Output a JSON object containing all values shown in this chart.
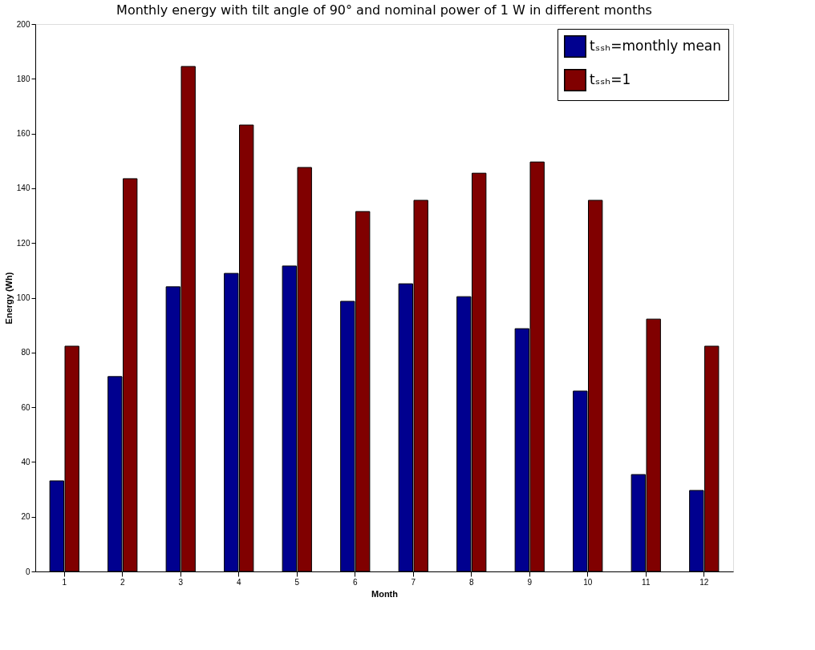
{
  "chart_data": {
    "type": "bar",
    "title": "Monthly energy with tilt angle of 90° and nominal power of 1 W in different months",
    "xlabel": "Month",
    "ylabel": "Energy (Wh)",
    "categories": [
      "1",
      "2",
      "3",
      "4",
      "5",
      "6",
      "7",
      "8",
      "9",
      "10",
      "11",
      "12"
    ],
    "series": [
      {
        "name": "tₛₛₕ=monthly mean",
        "color": "#00008f",
        "values": [
          33.1,
          71.2,
          104,
          108.9,
          111.6,
          98.7,
          105.1,
          100.4,
          88.7,
          65.9,
          35.4,
          29.6
        ]
      },
      {
        "name": "tₛₛₕ=1",
        "color": "#800000",
        "values": [
          82.3,
          143.5,
          184.5,
          163.1,
          147.6,
          131.5,
          135.6,
          145.5,
          149.6,
          135.6,
          92.2,
          82.3
        ]
      }
    ],
    "ylim": [
      0,
      200
    ],
    "yticks": [
      0,
      20,
      40,
      60,
      80,
      100,
      120,
      140,
      160,
      180,
      200
    ],
    "grid": false,
    "legend": "top right"
  }
}
